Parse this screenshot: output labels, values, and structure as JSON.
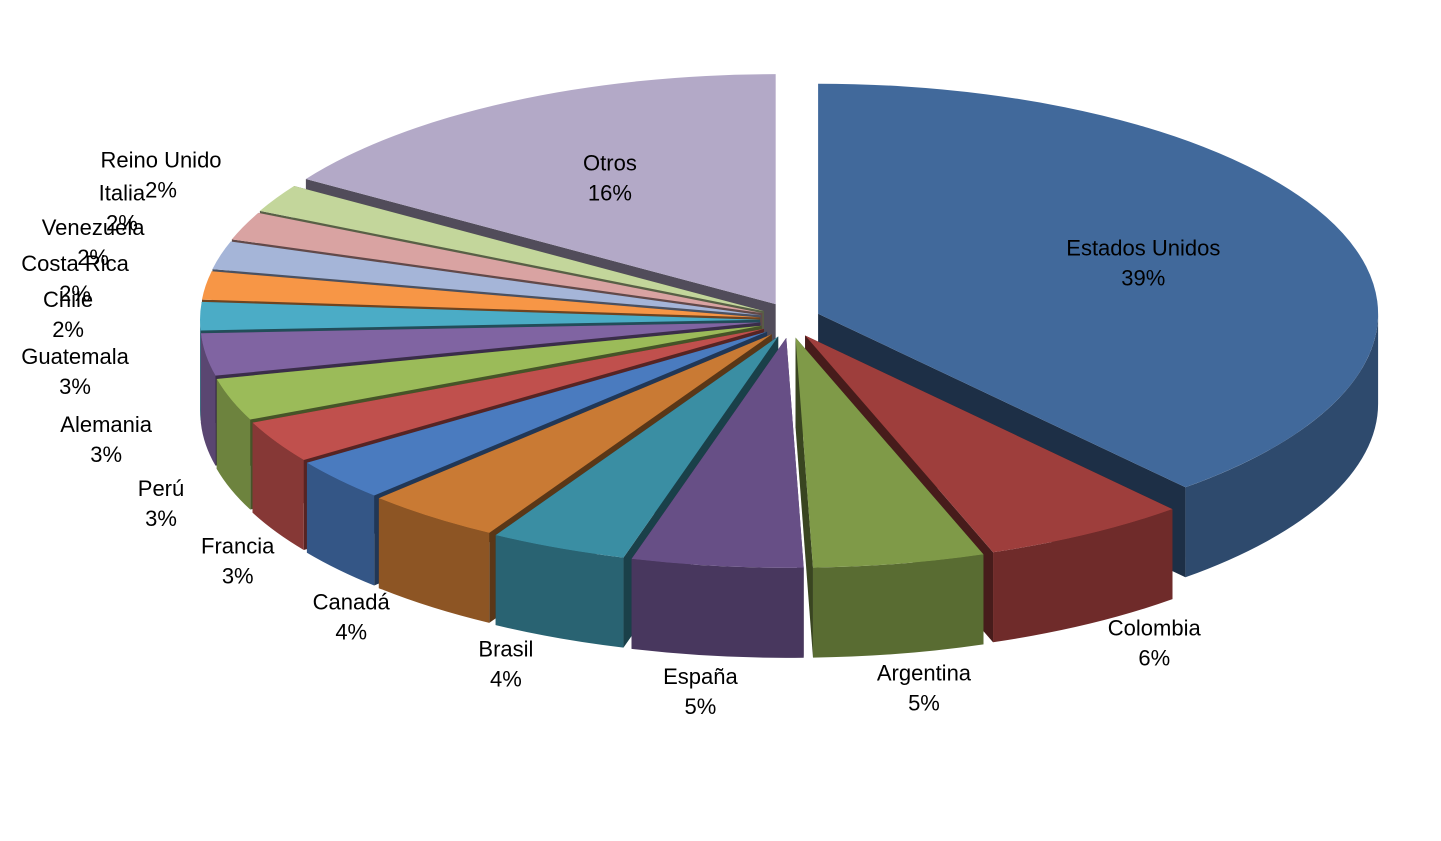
{
  "chart_data": {
    "type": "pie3d",
    "categories": [
      "Estados Unidos",
      "Colombia",
      "Argentina",
      "España",
      "Brasil",
      "Canadá",
      "Francia",
      "Perú",
      "Alemania",
      "Guatemala",
      "Chile",
      "Costa Rica",
      "Venezuela",
      "Italia",
      "Reino Unido",
      "Otros"
    ],
    "values": [
      39,
      6,
      5,
      5,
      4,
      4,
      3,
      3,
      3,
      3,
      2,
      2,
      2,
      2,
      2,
      16
    ],
    "value_labels": [
      "39%",
      "6%",
      "5%",
      "5%",
      "4%",
      "4%",
      "3%",
      "3%",
      "3%",
      "3%",
      "2%",
      "2%",
      "2%",
      "2%",
      "2%",
      "16%"
    ],
    "colors": [
      "#41699b",
      "#9e3e3c",
      "#7f9a48",
      "#674f86",
      "#3a8ea3",
      "#c97a34",
      "#4a7bbf",
      "#c0504d",
      "#9bbb59",
      "#8064a2",
      "#4bacc6",
      "#f79646",
      "#a5b5d8",
      "#d9a3a2",
      "#c3d69b",
      "#b3a9c7"
    ]
  }
}
